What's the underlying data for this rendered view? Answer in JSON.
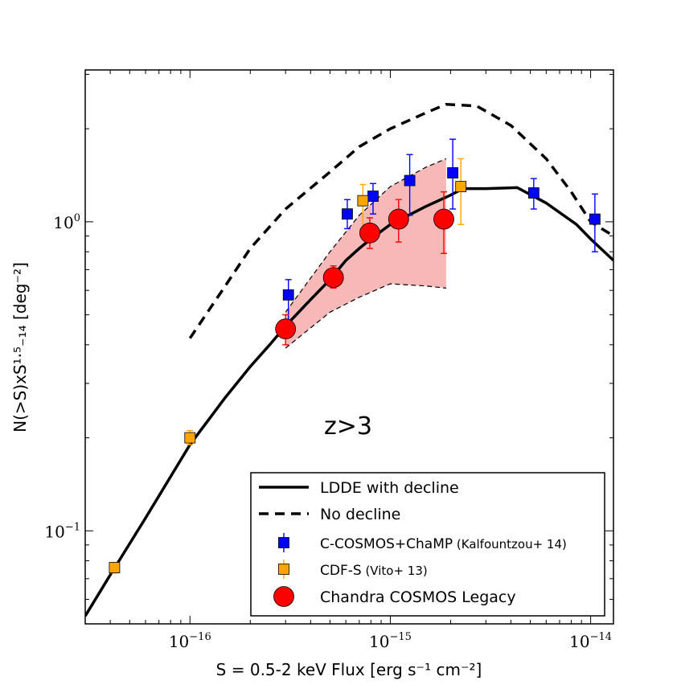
{
  "chart_data": {
    "type": "scatter",
    "xscale": "log",
    "yscale": "log",
    "xlim": [
      3e-17,
      1.3e-14
    ],
    "ylim": [
      0.05,
      3.1
    ],
    "xlabel": "S = 0.5-2 keV Flux [erg s⁻¹ cm⁻²]",
    "ylabel": "N(>S)xS¹·⁵₋₁₄ [deg⁻²]",
    "annotation": "z>3",
    "x_tick_labels": [
      {
        "x": 1e-16,
        "base": "10",
        "exp": "−16"
      },
      {
        "x": 1e-15,
        "base": "10",
        "exp": "−15"
      },
      {
        "x": 1e-14,
        "base": "10",
        "exp": "−14"
      }
    ],
    "y_tick_labels": [
      {
        "y": 1,
        "base": "10",
        "exp": "0"
      },
      {
        "y": 0.1,
        "base": "10",
        "exp": "−1"
      }
    ],
    "series": [
      {
        "name": "LDDE with decline",
        "kind": "line",
        "style": "solid",
        "color": "#000000",
        "points": [
          [
            3e-17,
            0.053
          ],
          [
            4e-17,
            0.072
          ],
          [
            6e-17,
            0.11
          ],
          [
            1e-16,
            0.19
          ],
          [
            1.5e-16,
            0.27
          ],
          [
            2e-16,
            0.34
          ],
          [
            2.5e-16,
            0.4
          ],
          [
            3e-16,
            0.46
          ],
          [
            4e-16,
            0.56
          ],
          [
            5e-16,
            0.65
          ],
          [
            6e-16,
            0.75
          ],
          [
            7e-16,
            0.82
          ],
          [
            8e-16,
            0.88
          ],
          [
            1e-15,
            0.98
          ],
          [
            1.5e-15,
            1.12
          ],
          [
            2e-15,
            1.22
          ],
          [
            2.3e-15,
            1.28
          ],
          [
            3e-15,
            1.28
          ],
          [
            4.3e-15,
            1.29
          ],
          [
            6e-15,
            1.15
          ],
          [
            8.5e-15,
            0.98
          ],
          [
            1e-14,
            0.88
          ],
          [
            1.3e-14,
            0.75
          ]
        ]
      },
      {
        "name": "No decline",
        "kind": "line",
        "style": "dashed",
        "color": "#000000",
        "points": [
          [
            1e-16,
            0.42
          ],
          [
            1.5e-16,
            0.62
          ],
          [
            2e-16,
            0.82
          ],
          [
            3e-16,
            1.1
          ],
          [
            5e-16,
            1.45
          ],
          [
            7e-16,
            1.75
          ],
          [
            1e-15,
            2.0
          ],
          [
            1.5e-15,
            2.25
          ],
          [
            1.9e-15,
            2.4
          ],
          [
            2.7e-15,
            2.37
          ],
          [
            4e-15,
            2.05
          ],
          [
            6e-15,
            1.6
          ],
          [
            8e-15,
            1.25
          ],
          [
            1e-14,
            1.0
          ],
          [
            1.3e-14,
            0.9
          ]
        ]
      },
      {
        "name": "C-COSMOS+ChaMP (Kalfountzou+ 14)",
        "kind": "square",
        "color": "#0000ff",
        "points": [
          {
            "x": 3.1e-16,
            "y": 0.58,
            "lo": 0.48,
            "hi": 0.65
          },
          {
            "x": 6.1e-16,
            "y": 1.06,
            "lo": 0.95,
            "hi": 1.18
          },
          {
            "x": 8.2e-16,
            "y": 1.21,
            "lo": 1.06,
            "hi": 1.33
          },
          {
            "x": 1.25e-15,
            "y": 1.36,
            "lo": 1.05,
            "hi": 1.65
          },
          {
            "x": 2.05e-15,
            "y": 1.44,
            "lo": 1.1,
            "hi": 1.85
          },
          {
            "x": 5.2e-15,
            "y": 1.24,
            "lo": 1.1,
            "hi": 1.38
          },
          {
            "x": 1.05e-14,
            "y": 1.02,
            "lo": 0.8,
            "hi": 1.23
          }
        ]
      },
      {
        "name": "CDF-S (Vito+ 13)",
        "kind": "square",
        "color": "#ffa500",
        "points": [
          {
            "x": 4.2e-17,
            "y": 0.076,
            "lo": 0.073,
            "hi": 0.079
          },
          {
            "x": 1e-16,
            "y": 0.2,
            "lo": 0.19,
            "hi": 0.211
          },
          {
            "x": 7.3e-16,
            "y": 1.17,
            "lo": 0.95,
            "hi": 1.32
          },
          {
            "x": 2.25e-15,
            "y": 1.3,
            "lo": 0.98,
            "hi": 1.6
          }
        ]
      },
      {
        "name": "Chandra COSMOS Legacy",
        "kind": "circle",
        "color": "#ff0000",
        "points": [
          {
            "x": 3e-16,
            "y": 0.45,
            "lo": 0.4,
            "hi": 0.5
          },
          {
            "x": 5.2e-16,
            "y": 0.66,
            "lo": 0.61,
            "hi": 0.72
          },
          {
            "x": 7.9e-16,
            "y": 0.92,
            "lo": 0.82,
            "hi": 1.03
          },
          {
            "x": 1.1e-15,
            "y": 1.02,
            "lo": 0.86,
            "hi": 1.18
          },
          {
            "x": 1.85e-15,
            "y": 1.02,
            "lo": 0.79,
            "hi": 1.25
          }
        ]
      }
    ],
    "band": {
      "name": "Chandra COSMOS Legacy uncertainty",
      "color": "#f4a0a0",
      "upper": [
        [
          3e-16,
          0.51
        ],
        [
          5e-16,
          0.8
        ],
        [
          7e-16,
          1.05
        ],
        [
          1e-15,
          1.3
        ],
        [
          1.5e-15,
          1.5
        ],
        [
          1.9e-15,
          1.6
        ]
      ],
      "lower": [
        [
          3e-16,
          0.39
        ],
        [
          5e-16,
          0.51
        ],
        [
          7e-16,
          0.57
        ],
        [
          1e-15,
          0.63
        ],
        [
          1.5e-15,
          0.62
        ],
        [
          1.9e-15,
          0.61
        ]
      ]
    },
    "legend": {
      "placement": "lower-right",
      "entries": [
        {
          "label": "LDDE with decline",
          "sub": "",
          "symbol": "solid-line",
          "color": "#000000"
        },
        {
          "label": "No decline",
          "sub": "",
          "symbol": "dashed-line",
          "color": "#000000"
        },
        {
          "label": "C-COSMOS+ChaMP",
          "sub": "(Kalfountzou+ 14)",
          "symbol": "square",
          "color": "#0000ff"
        },
        {
          "label": "CDF-S",
          "sub": "(Vito+ 13)",
          "symbol": "square",
          "color": "#ffa500"
        },
        {
          "label": "Chandra COSMOS Legacy",
          "sub": "",
          "symbol": "circle",
          "color": "#ff0000"
        }
      ]
    }
  }
}
